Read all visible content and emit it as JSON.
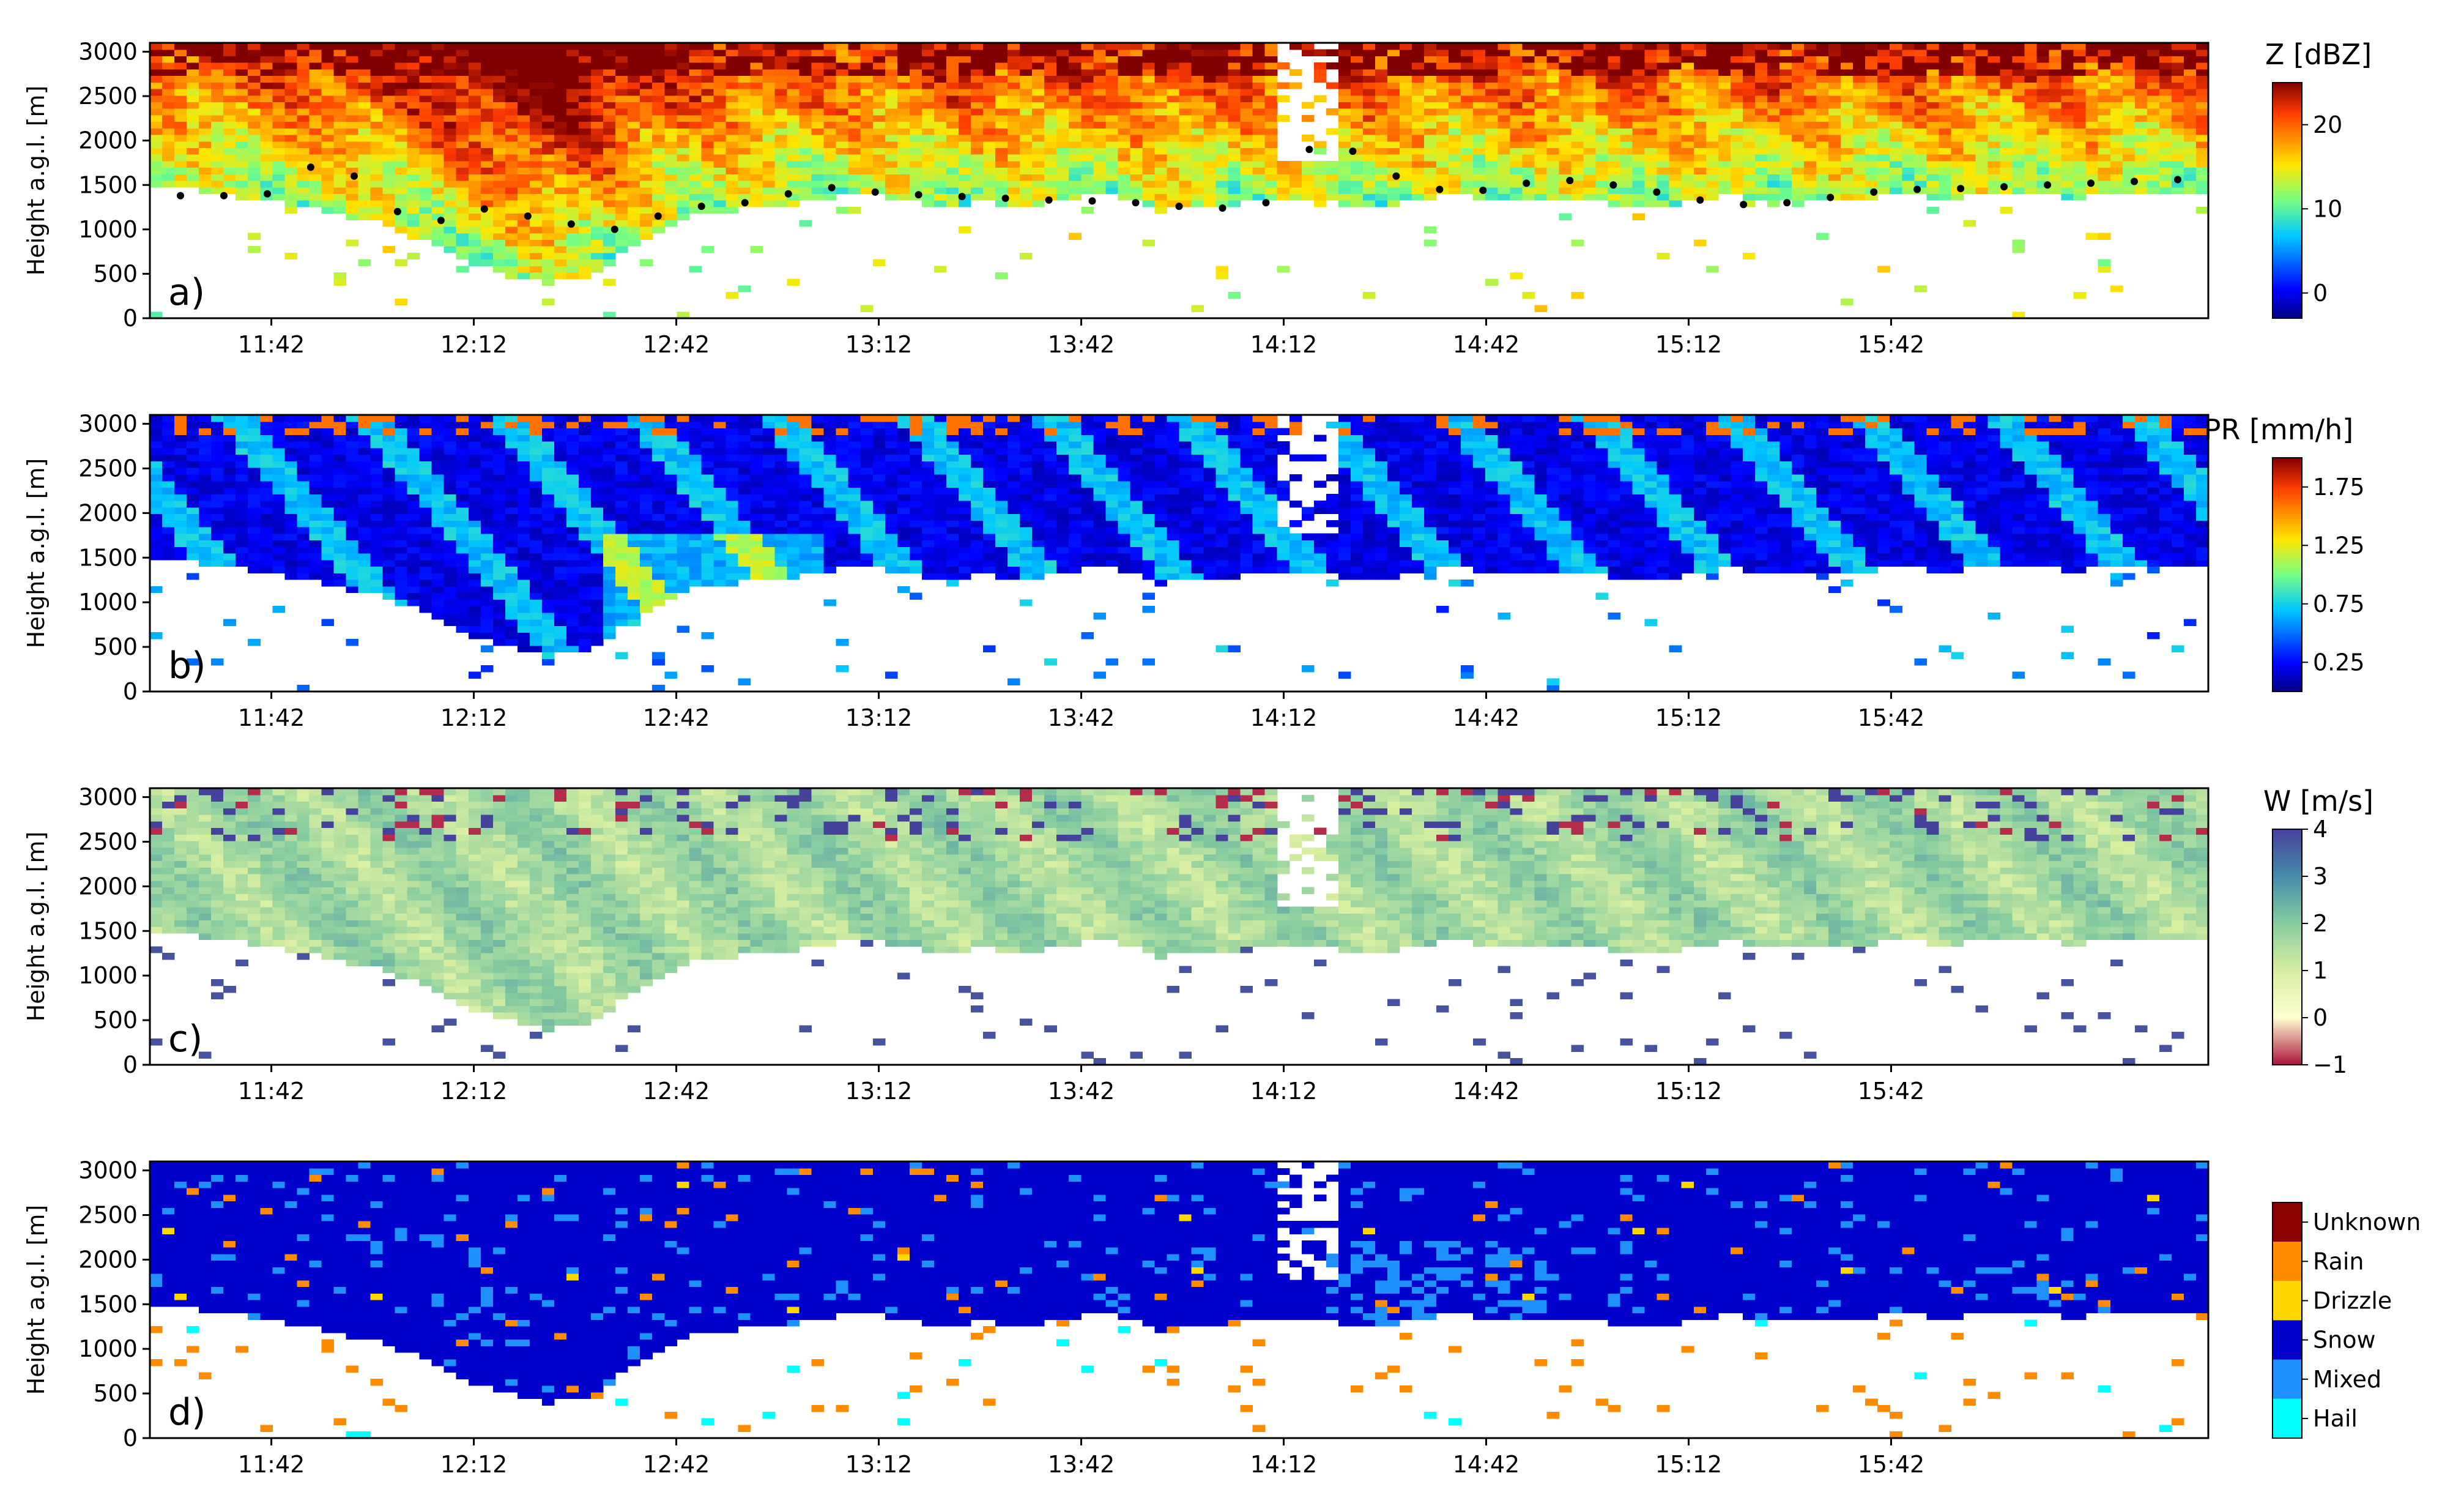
{
  "chart_data": [
    {
      "type": "heatmap",
      "panel_label": "a)",
      "variable": "Z",
      "colorbar_title": "Z [dBZ]",
      "colorbar_range": [
        -3,
        25
      ],
      "colorbar_ticks": [
        {
          "value": 0,
          "label": "0"
        },
        {
          "value": 10,
          "label": "10"
        },
        {
          "value": 20,
          "label": "20"
        }
      ],
      "ylabel": "Height a.g.l. [m]",
      "yticks": [
        "0",
        "500",
        "1000",
        "1500",
        "2000",
        "2500",
        "3000"
      ],
      "xticks": [
        "11:42",
        "12:12",
        "12:42",
        "13:12",
        "13:42",
        "14:12",
        "14:42",
        "15:12",
        "15:42"
      ],
      "time_range_min": [
        0,
        305
      ],
      "height_range_m": [
        0,
        3100
      ],
      "typical_value": 14,
      "overlay": {
        "name": "cloud base (black dots)",
        "base_height_m": [
          1380,
          1380,
          1400,
          1700,
          1600,
          1200,
          1100,
          1230,
          1150,
          1060,
          1000,
          1150,
          1260,
          1300,
          1400,
          1470,
          1420,
          1390,
          1370,
          1350,
          1330,
          1320,
          1300,
          1260,
          1240,
          1300,
          1900,
          1880,
          1600,
          1450,
          1440,
          1520,
          1550,
          1500,
          1420,
          1330,
          1280,
          1300,
          1360,
          1420,
          1450,
          1460,
          1480,
          1500,
          1520,
          1540,
          1560
        ]
      }
    },
    {
      "type": "heatmap",
      "panel_label": "b)",
      "variable": "PR",
      "colorbar_title": "PR [mm/h]",
      "colorbar_range": [
        0.0,
        2.0
      ],
      "colorbar_ticks": [
        {
          "value": 0.25,
          "label": "0.25"
        },
        {
          "value": 0.75,
          "label": "0.75"
        },
        {
          "value": 1.25,
          "label": "1.25"
        },
        {
          "value": 1.75,
          "label": "1.75"
        }
      ],
      "ylabel": "Height a.g.l. [m]",
      "yticks": [
        "0",
        "500",
        "1000",
        "1500",
        "2000",
        "2500",
        "3000"
      ],
      "xticks": [
        "11:42",
        "12:12",
        "12:42",
        "13:12",
        "13:42",
        "14:12",
        "14:42",
        "15:12",
        "15:42"
      ],
      "time_range_min": [
        0,
        305
      ],
      "height_range_m": [
        0,
        3100
      ],
      "typical_value": 0.3
    },
    {
      "type": "heatmap",
      "panel_label": "c)",
      "variable": "W",
      "colorbar_title": "W [m/s]",
      "colorbar_range": [
        -1,
        4
      ],
      "colorbar_ticks": [
        {
          "value": -1,
          "label": "−1"
        },
        {
          "value": 0,
          "label": "0"
        },
        {
          "value": 1,
          "label": "1"
        },
        {
          "value": 2,
          "label": "2"
        },
        {
          "value": 3,
          "label": "3"
        },
        {
          "value": 4,
          "label": "4"
        }
      ],
      "ylabel": "Height a.g.l. [m]",
      "yticks": [
        "0",
        "500",
        "1000",
        "1500",
        "2000",
        "2500",
        "3000"
      ],
      "xticks": [
        "11:42",
        "12:12",
        "12:42",
        "13:12",
        "13:42",
        "14:12",
        "14:42",
        "15:12",
        "15:42"
      ],
      "time_range_min": [
        0,
        305
      ],
      "height_range_m": [
        0,
        3100
      ],
      "typical_value": 1.2
    },
    {
      "type": "heatmap",
      "panel_label": "d)",
      "variable": "Hydrometeor class",
      "categories": [
        "Hail",
        "Mixed",
        "Snow",
        "Drizzle",
        "Rain",
        "Unknown"
      ],
      "category_colors": [
        "#00ffff",
        "#1e90ff",
        "#0000cd",
        "#ffd700",
        "#ff8c00",
        "#8b0000"
      ],
      "ylabel": "Height a.g.l. [m]",
      "yticks": [
        "0",
        "500",
        "1000",
        "1500",
        "2000",
        "2500",
        "3000"
      ],
      "xticks": [
        "11:42",
        "12:12",
        "12:42",
        "13:12",
        "13:42",
        "14:12",
        "14:42",
        "15:12",
        "15:42"
      ],
      "time_range_min": [
        0,
        305
      ],
      "height_range_m": [
        0,
        3100
      ],
      "dominant_class": "Snow"
    }
  ],
  "echo_base_m": [
    1500,
    1450,
    1380,
    1300,
    1200,
    1100,
    950,
    700,
    520,
    400,
    450,
    800,
    1100,
    1200,
    1250,
    1300,
    1400,
    1350,
    1250,
    1300,
    1250,
    1350,
    1400,
    1200,
    1250,
    1300,
    1350,
    1300,
    1250,
    1350,
    1400,
    1300,
    1350,
    1300,
    1250,
    1300,
    1380,
    1350,
    1300,
    1350,
    1400,
    1350,
    1380,
    1400,
    1350,
    1400,
    1400,
    1400
  ]
}
